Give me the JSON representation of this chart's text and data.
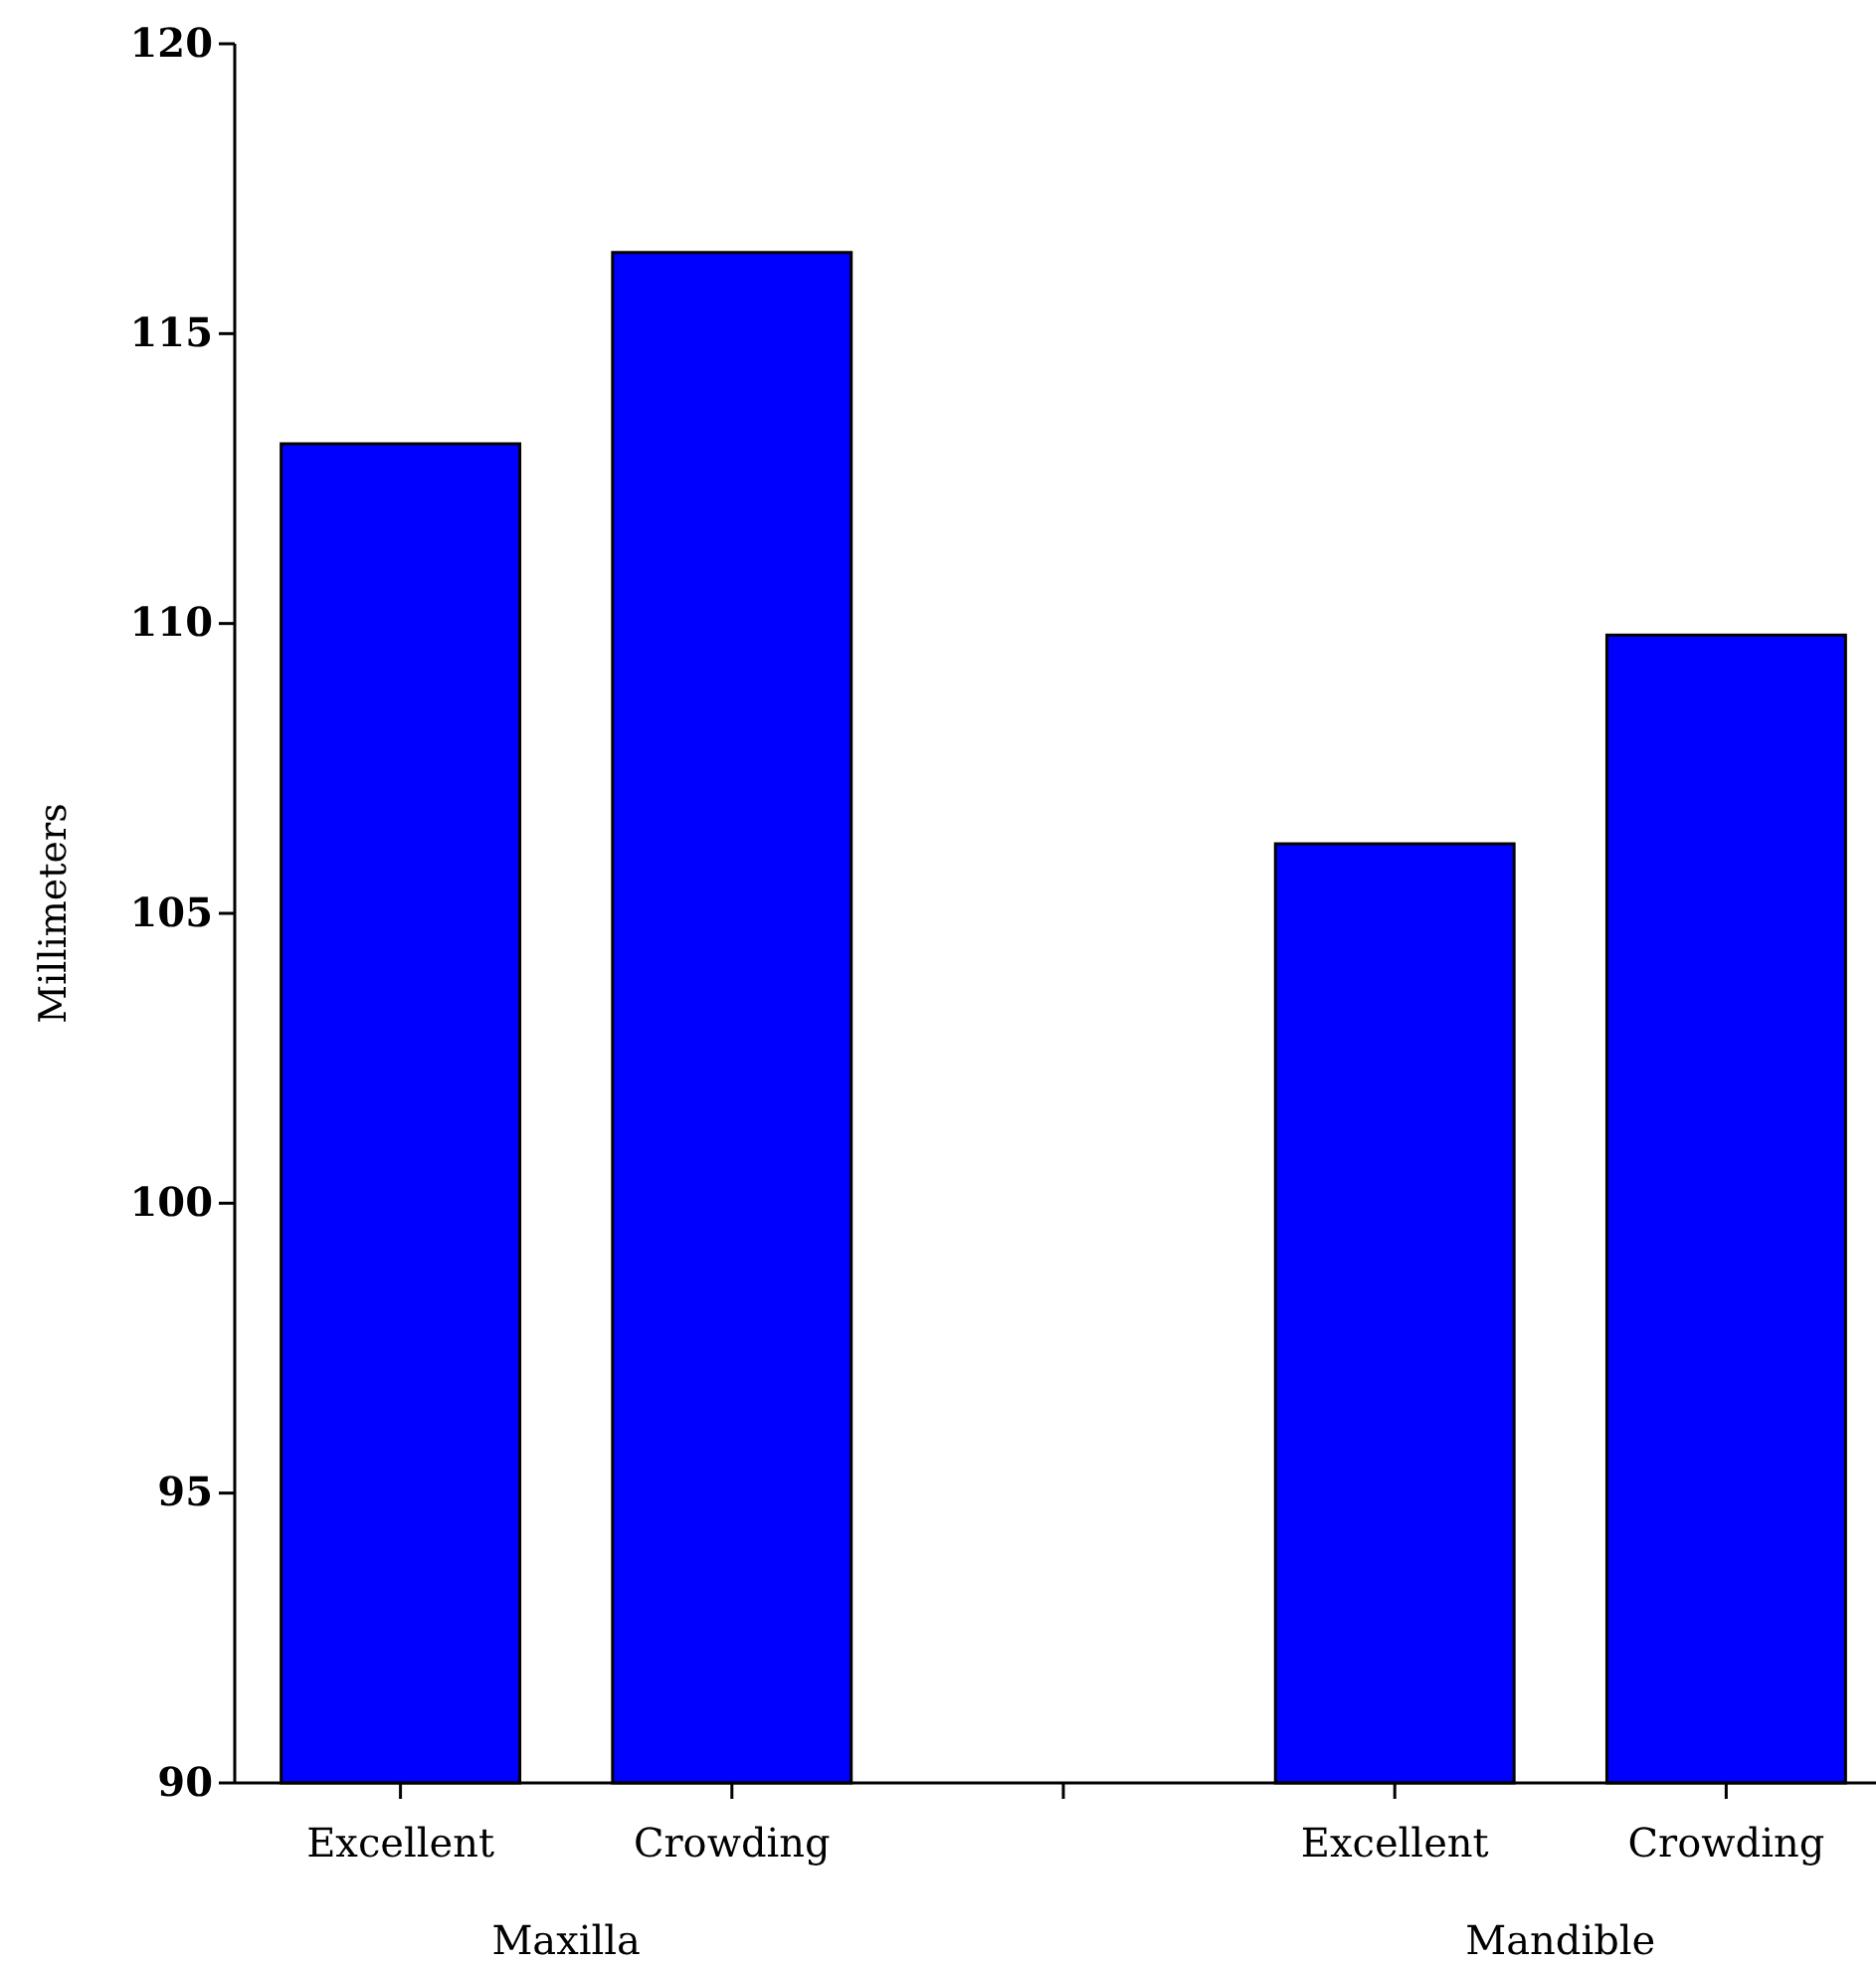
{
  "chart_data": {
    "type": "bar",
    "ylabel": "Millimeters",
    "categories": [
      "Excellent",
      "Crowding",
      null,
      "Excellent",
      "Crowding"
    ],
    "values": [
      113.1,
      116.4,
      null,
      106.2,
      109.8
    ],
    "color": "#0000ff",
    "ylim": [
      90,
      120
    ],
    "yticks": [
      90,
      95,
      100,
      105,
      110,
      115,
      120
    ],
    "annotations": [
      "Maxilla",
      "Mandible"
    ]
  }
}
